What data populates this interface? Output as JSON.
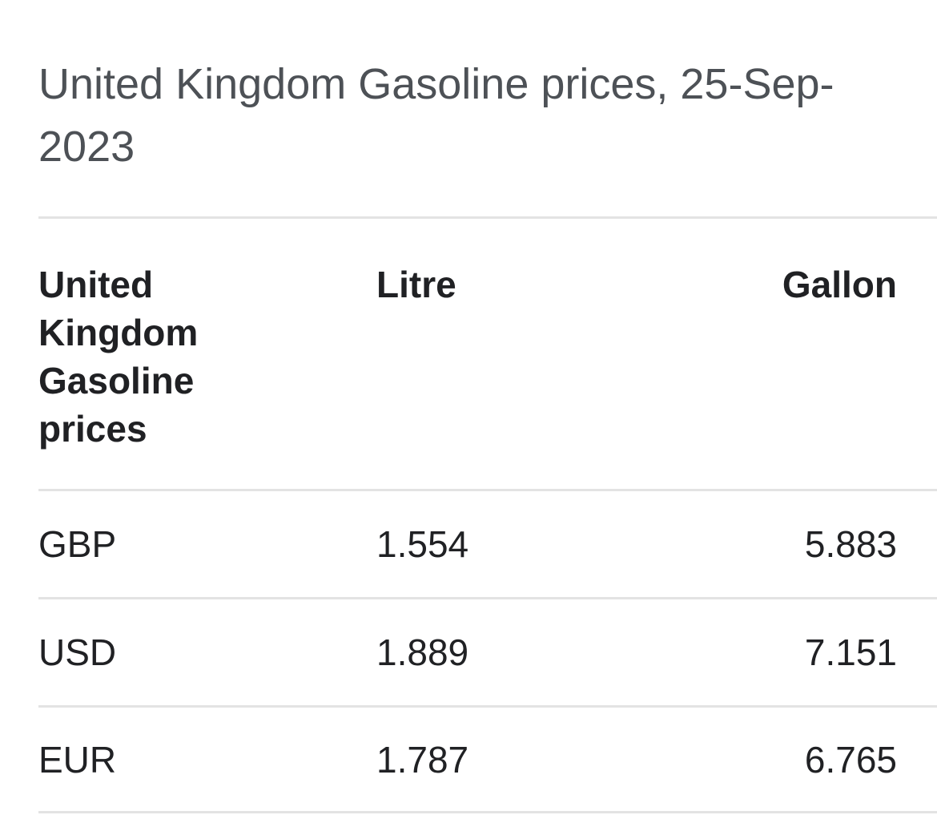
{
  "header": {
    "title": "United Kingdom Gasoline prices, 25-Sep-2023"
  },
  "table": {
    "columns": [
      "United Kingdom Gasoline prices",
      "Litre",
      "Gallon"
    ],
    "rows": [
      [
        "GBP",
        1.554,
        5.883
      ],
      [
        "USD",
        1.889,
        7.151
      ],
      [
        "EUR",
        1.787,
        6.765
      ]
    ]
  }
}
